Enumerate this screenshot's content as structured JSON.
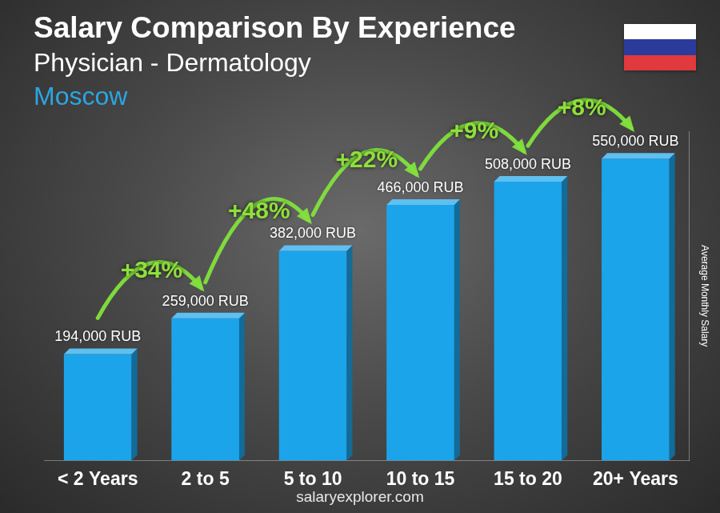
{
  "chart_data": {
    "type": "bar",
    "title": "Salary Comparison By Experience",
    "subtitle": "Physician - Dermatology",
    "location": "Moscow",
    "y_label": "Average Monthly Salary",
    "source": "salaryexplorer.com",
    "categories": [
      "< 2 Years",
      "2 to 5",
      "5 to 10",
      "10 to 15",
      "15 to 20",
      "20+ Years"
    ],
    "values": [
      194000,
      259000,
      382000,
      466000,
      508000,
      550000
    ],
    "value_labels": [
      "194,000 RUB",
      "259,000 RUB",
      "382,000 RUB",
      "466,000 RUB",
      "508,000 RUB",
      "550,000 RUB"
    ],
    "annotations": [
      "+34%",
      "+48%",
      "+22%",
      "+9%",
      "+8%"
    ],
    "color": "#1ba4ea",
    "ylim": [
      0,
      600000
    ],
    "grid": false,
    "data_labels": true,
    "tick_labels": "x"
  }
}
